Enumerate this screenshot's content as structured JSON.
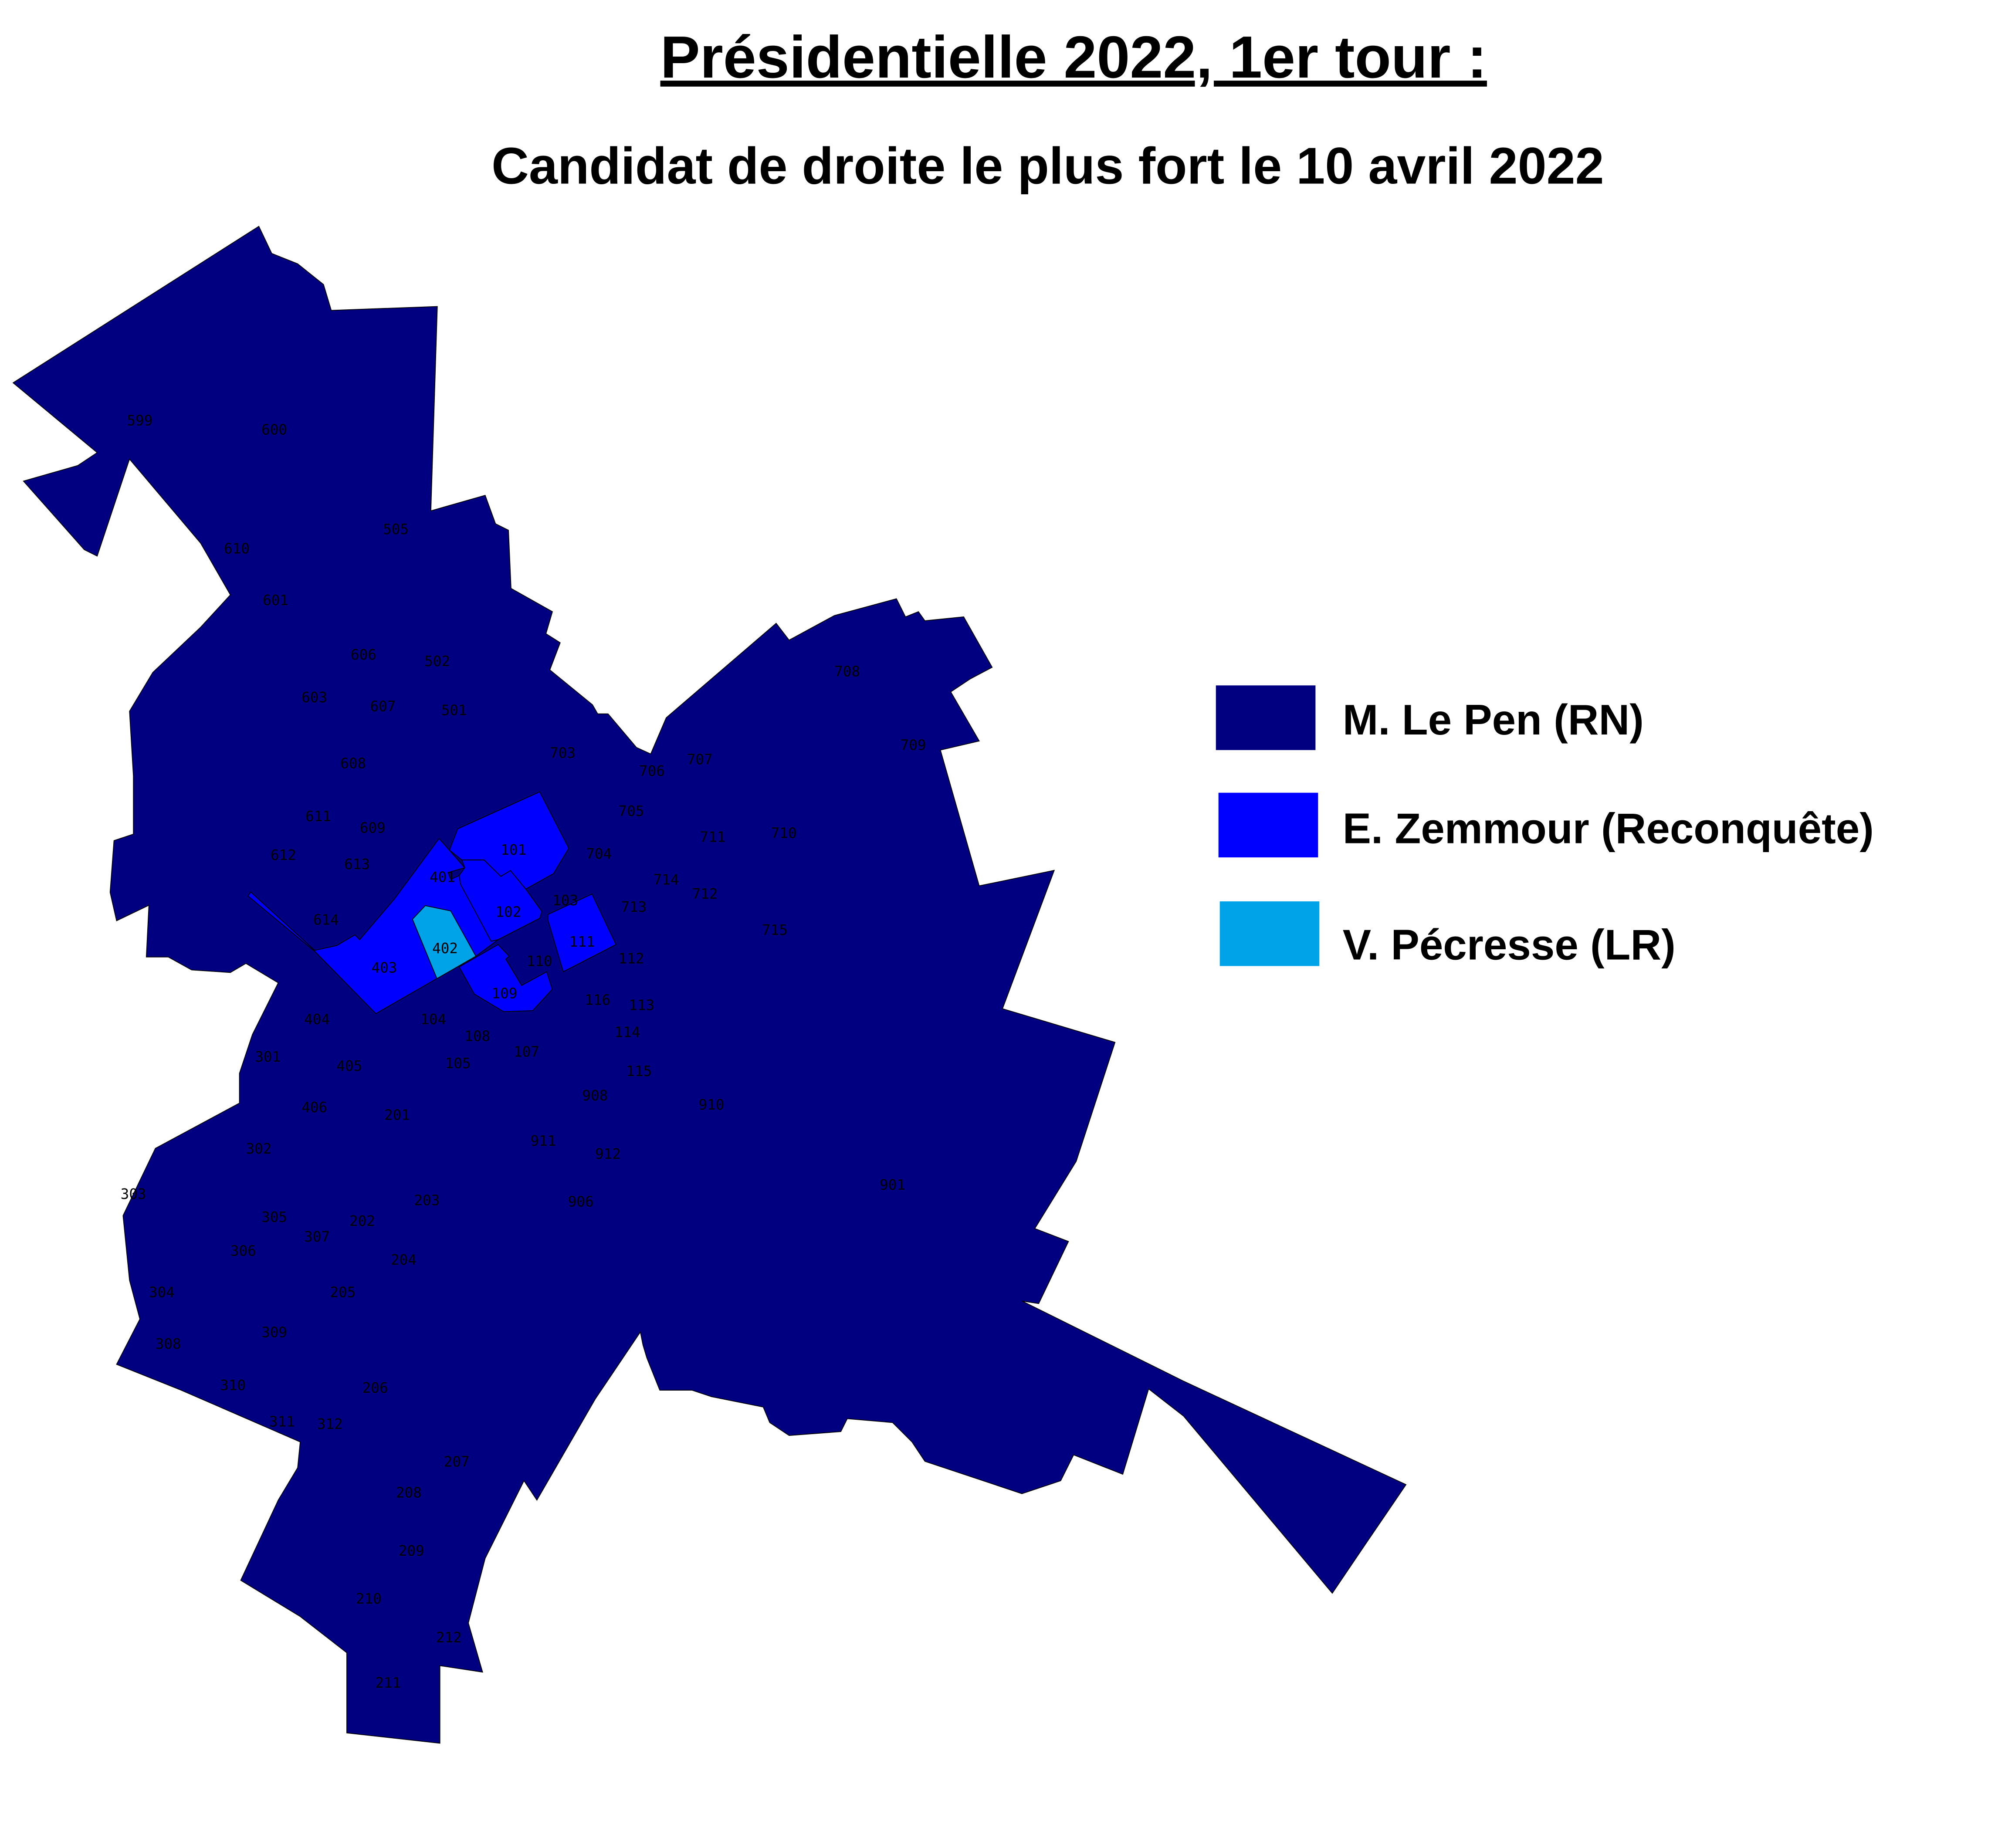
{
  "title": "Présidentielle 2022, 1er tour :",
  "subtitle": "Candidat de droite le plus fort le 10 avril 2022",
  "colors": {
    "le_pen": "#000080",
    "zemmour": "#0000FF",
    "pecresse": "#00A2E8",
    "background": "#FFFFFF"
  },
  "legend": [
    {
      "label": "M. Le Pen (RN)",
      "color": "#000080"
    },
    {
      "label": "E. Zemmour (Reconquête)",
      "color": "#0000FF"
    },
    {
      "label": "V. Pécresse (LR)",
      "color": "#00A2E8"
    }
  ],
  "map": {
    "default_winner": "M. Le Pen (RN)",
    "zemmour_bureaus": [
      "101",
      "102",
      "401",
      "403",
      "109",
      "111"
    ],
    "pecresse_bureaus": [
      "402"
    ],
    "bureau_labels": [
      "599",
      "600",
      "610",
      "601",
      "505",
      "606",
      "502",
      "603",
      "607",
      "501",
      "608",
      "611",
      "612",
      "613",
      "614",
      "609",
      "703",
      "706",
      "707",
      "708",
      "709",
      "705",
      "704",
      "711",
      "710",
      "714",
      "713",
      "712",
      "715",
      "101",
      "102",
      "103",
      "401",
      "402",
      "403",
      "111",
      "110",
      "112",
      "116",
      "113",
      "114",
      "115",
      "109",
      "404",
      "104",
      "108",
      "105",
      "107",
      "301",
      "405",
      "908",
      "910",
      "906",
      "911",
      "912",
      "901",
      "406",
      "302",
      "303",
      "304",
      "305",
      "306",
      "307",
      "308",
      "309",
      "310",
      "311",
      "312",
      "201",
      "202",
      "203",
      "204",
      "205",
      "206",
      "207",
      "208",
      "209",
      "210",
      "211",
      "212"
    ]
  }
}
